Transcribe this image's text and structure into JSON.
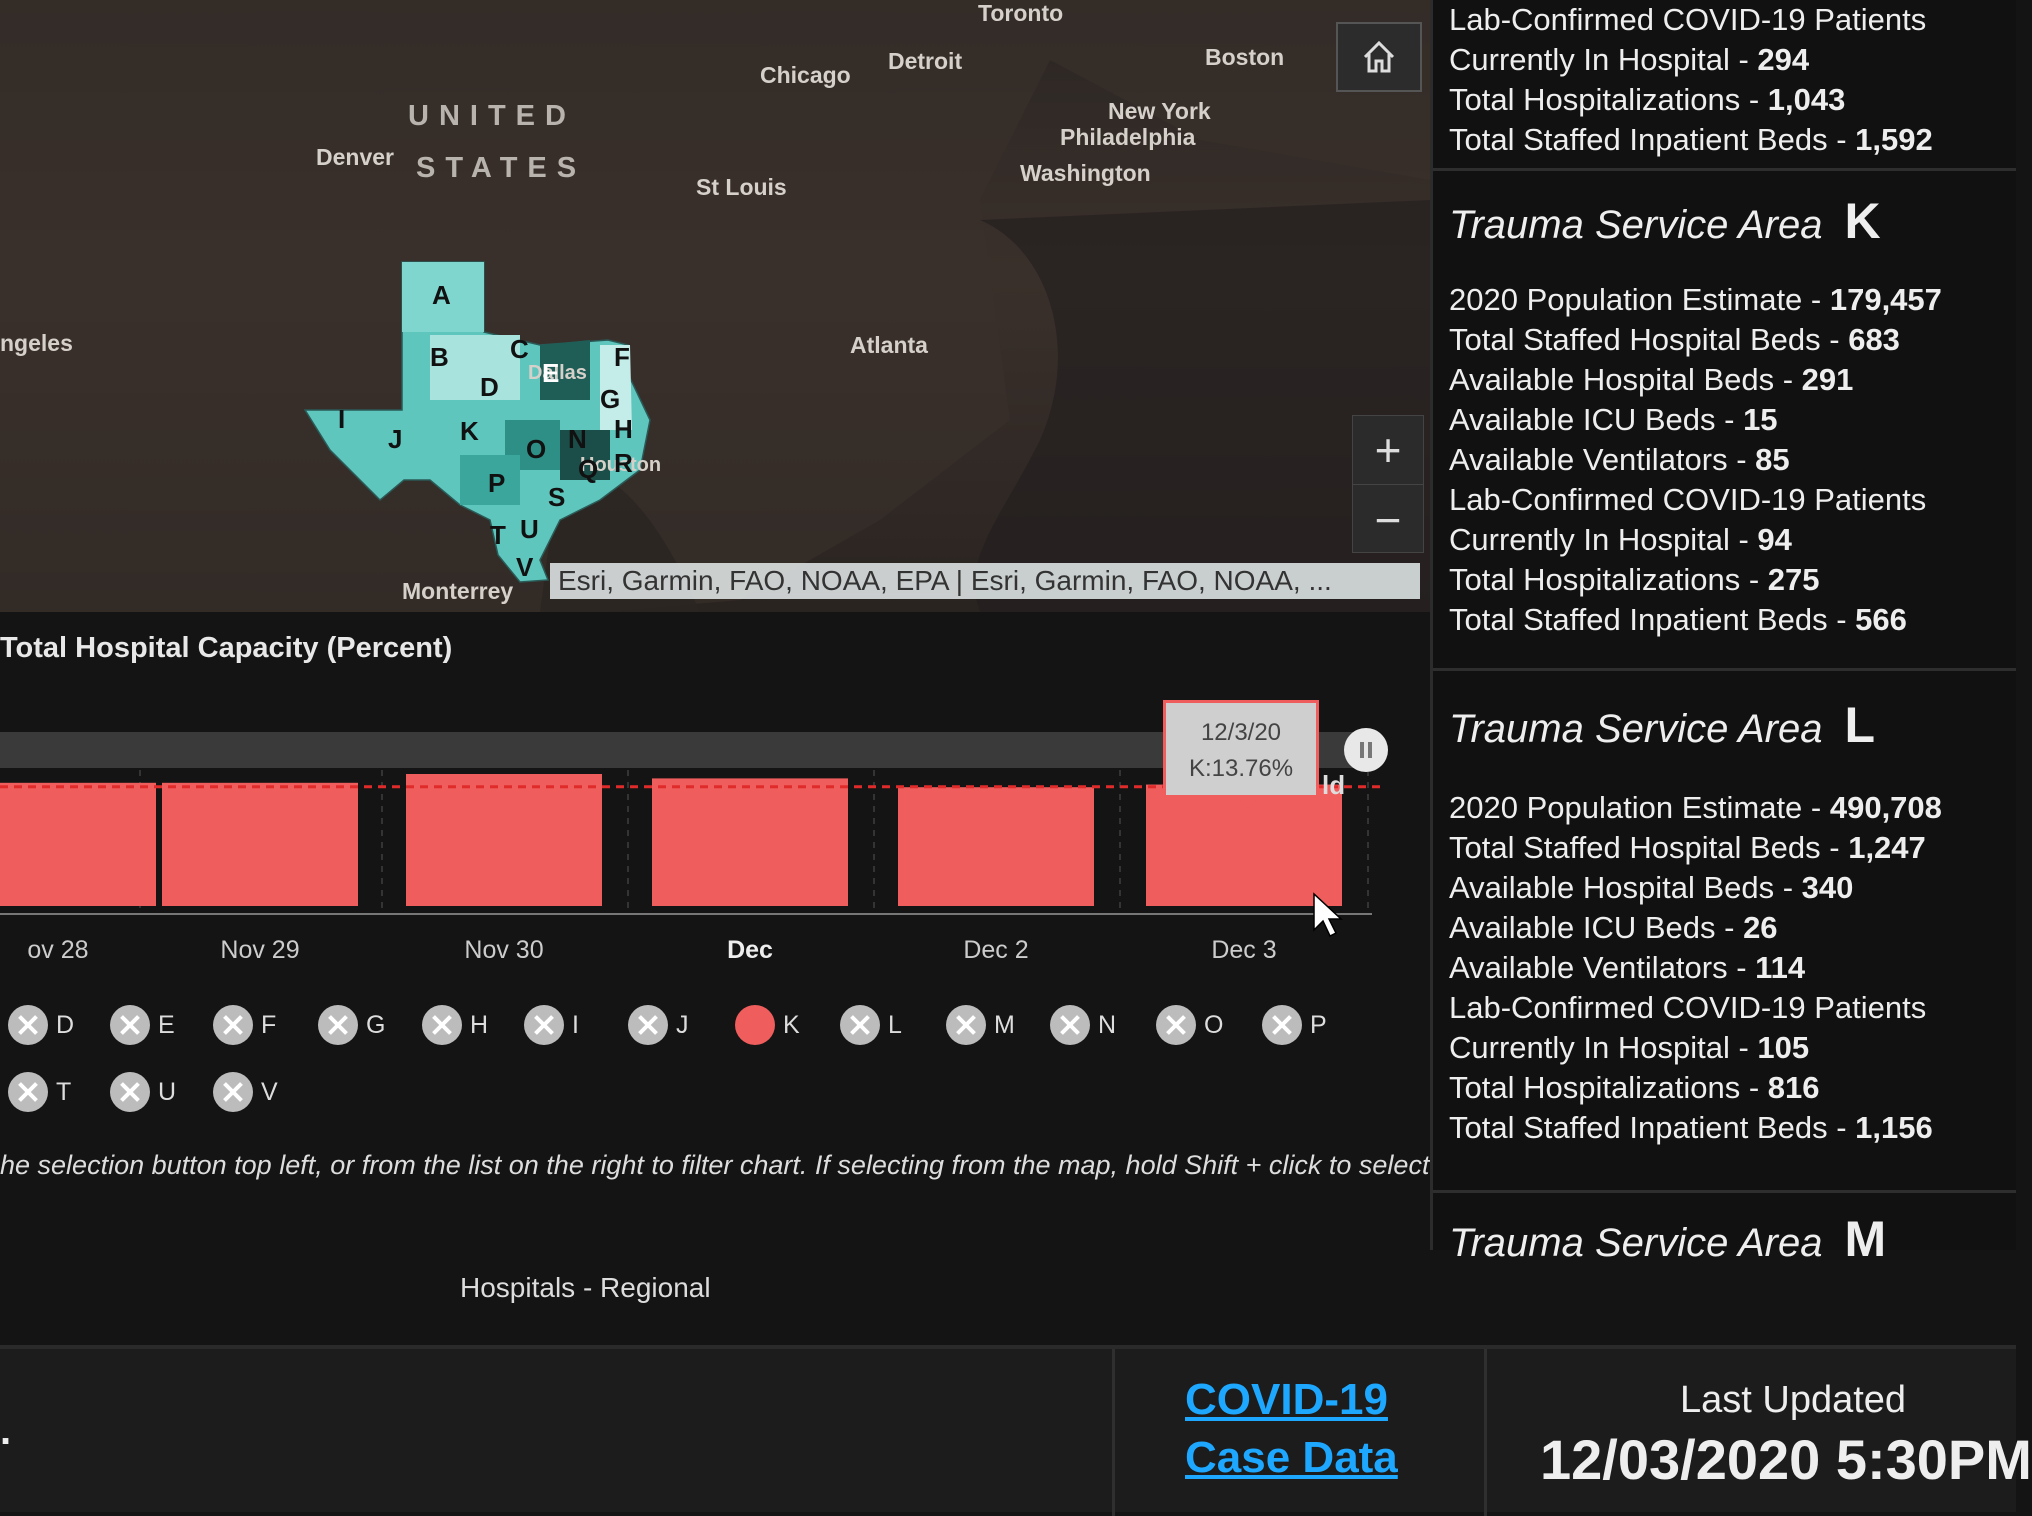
{
  "map": {
    "cities": [
      "Toronto",
      "Chicago",
      "Detroit",
      "Boston",
      "New York",
      "Philadelphia",
      "Washington",
      "Denver",
      "St Louis",
      "Atlanta",
      "ngeles",
      "Monterrey",
      "Dallas",
      "Houston"
    ],
    "country_lines": [
      "UNITED",
      "STATES"
    ],
    "region_letters": [
      "A",
      "B",
      "C",
      "D",
      "E",
      "F",
      "G",
      "H",
      "I",
      "J",
      "K",
      "N",
      "O",
      "P",
      "Q",
      "R",
      "S",
      "T",
      "U",
      "V"
    ],
    "attribution": "Esri, Garmin, FAO, NOAA, EPA | Esri, Garmin, FAO, NOAA, ...",
    "home_icon": "home-icon",
    "zoom_in": "+",
    "zoom_out": "−"
  },
  "chart": {
    "title": "Total Hospital Capacity (Percent)",
    "tooltip_date": "12/3/20",
    "tooltip_value": "K:13.76%",
    "threshold_label": "ld"
  },
  "chart_data": {
    "type": "bar",
    "categories": [
      "ov 28",
      "Nov 29",
      "Nov 30",
      "Dec",
      "Dec 2",
      "Dec 3"
    ],
    "values": [
      13.8,
      13.8,
      14.0,
      13.9,
      13.7,
      13.76
    ],
    "threshold": 13.8,
    "bar_color": "#ef5d5d",
    "ylim": [
      0,
      15
    ]
  },
  "legend": {
    "row1": [
      {
        "label": "D",
        "selected": false
      },
      {
        "label": "E",
        "selected": false
      },
      {
        "label": "F",
        "selected": false
      },
      {
        "label": "G",
        "selected": false
      },
      {
        "label": "H",
        "selected": false
      },
      {
        "label": "I",
        "selected": false
      },
      {
        "label": "J",
        "selected": false
      },
      {
        "label": "K",
        "selected": true
      },
      {
        "label": "L",
        "selected": false
      },
      {
        "label": "M",
        "selected": false
      },
      {
        "label": "N",
        "selected": false
      },
      {
        "label": "O",
        "selected": false
      },
      {
        "label": "P",
        "selected": false
      }
    ],
    "row2": [
      {
        "label": "T",
        "selected": false
      },
      {
        "label": "U",
        "selected": false
      },
      {
        "label": "V",
        "selected": false
      }
    ]
  },
  "hint": "he selection button top left, or from the list on the right to filter chart. If selecting from the map, hold Shift + click to select",
  "regional_label": "Hospitals - Regional",
  "panel": {
    "top_block": [
      {
        "label": "Lab-Confirmed COVID-19 Patients",
        "value": ""
      },
      {
        "label": "Currently In Hospital - ",
        "value": "294"
      },
      {
        "label": "Total Hospitalizations - ",
        "value": "1,043"
      },
      {
        "label": "Total Staffed Inpatient Beds - ",
        "value": "1,592"
      }
    ],
    "areas": [
      {
        "title": "Trauma Service Area",
        "letter": "K",
        "stats": [
          {
            "label": "2020 Population Estimate - ",
            "value": "179,457"
          },
          {
            "label": "Total Staffed Hospital Beds - ",
            "value": "683"
          },
          {
            "label": "Available Hospital Beds - ",
            "value": "291"
          },
          {
            "label": "Available ICU Beds - ",
            "value": "15"
          },
          {
            "label": "Available Ventilators - ",
            "value": "85"
          },
          {
            "label": "Lab-Confirmed COVID-19 Patients",
            "value": ""
          },
          {
            "label": "Currently In Hospital - ",
            "value": "94"
          },
          {
            "label": "Total Hospitalizations - ",
            "value": "275"
          },
          {
            "label": "Total Staffed Inpatient Beds - ",
            "value": "566"
          }
        ]
      },
      {
        "title": "Trauma Service Area",
        "letter": "L",
        "stats": [
          {
            "label": "2020 Population Estimate - ",
            "value": "490,708"
          },
          {
            "label": "Total Staffed Hospital Beds - ",
            "value": "1,247"
          },
          {
            "label": "Available Hospital Beds - ",
            "value": "340"
          },
          {
            "label": "Available ICU Beds - ",
            "value": "26"
          },
          {
            "label": "Available Ventilators - ",
            "value": "114"
          },
          {
            "label": "Lab-Confirmed COVID-19 Patients",
            "value": ""
          },
          {
            "label": "Currently In Hospital - ",
            "value": "105"
          },
          {
            "label": "Total Hospitalizations - ",
            "value": "816"
          },
          {
            "label": "Total Staffed Inpatient Beds - ",
            "value": "1,156"
          }
        ]
      },
      {
        "title": "Trauma Service Area",
        "letter": "M",
        "stats": []
      }
    ]
  },
  "footer": {
    "left_text": ".",
    "link_line1": "COVID-19",
    "link_line2": "Case Data",
    "last_updated_label": "Last Updated",
    "last_updated_value": "12/03/2020 5:30PM"
  }
}
